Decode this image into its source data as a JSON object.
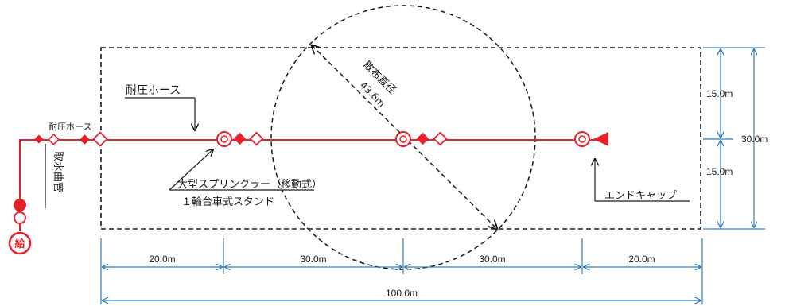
{
  "labels": {
    "pressure_hose_top": "耐圧ホース",
    "pressure_hose_left": "耐圧ホース",
    "intake_pipe": "取水曲管",
    "supply": "給",
    "sprinkler_line1": "大型スプリンクラー（移動式）",
    "sprinkler_line2": "１輪台車式スタンド",
    "end_cap": "エンドキャップ",
    "spread_diameter_title": "散布直径",
    "spread_diameter_value": "43.6m"
  },
  "dimensions": {
    "horizontal_segments": [
      "20.0m",
      "30.0m",
      "30.0m",
      "20.0m"
    ],
    "horizontal_total": "100.0m",
    "vertical_upper": "15.0m",
    "vertical_lower": "15.0m",
    "vertical_total": "30.0m"
  },
  "colors": {
    "hose": "#e8202a",
    "dim_line": "#2f7fc0",
    "outline": "#1a1a1a",
    "background": "#ffffff"
  }
}
